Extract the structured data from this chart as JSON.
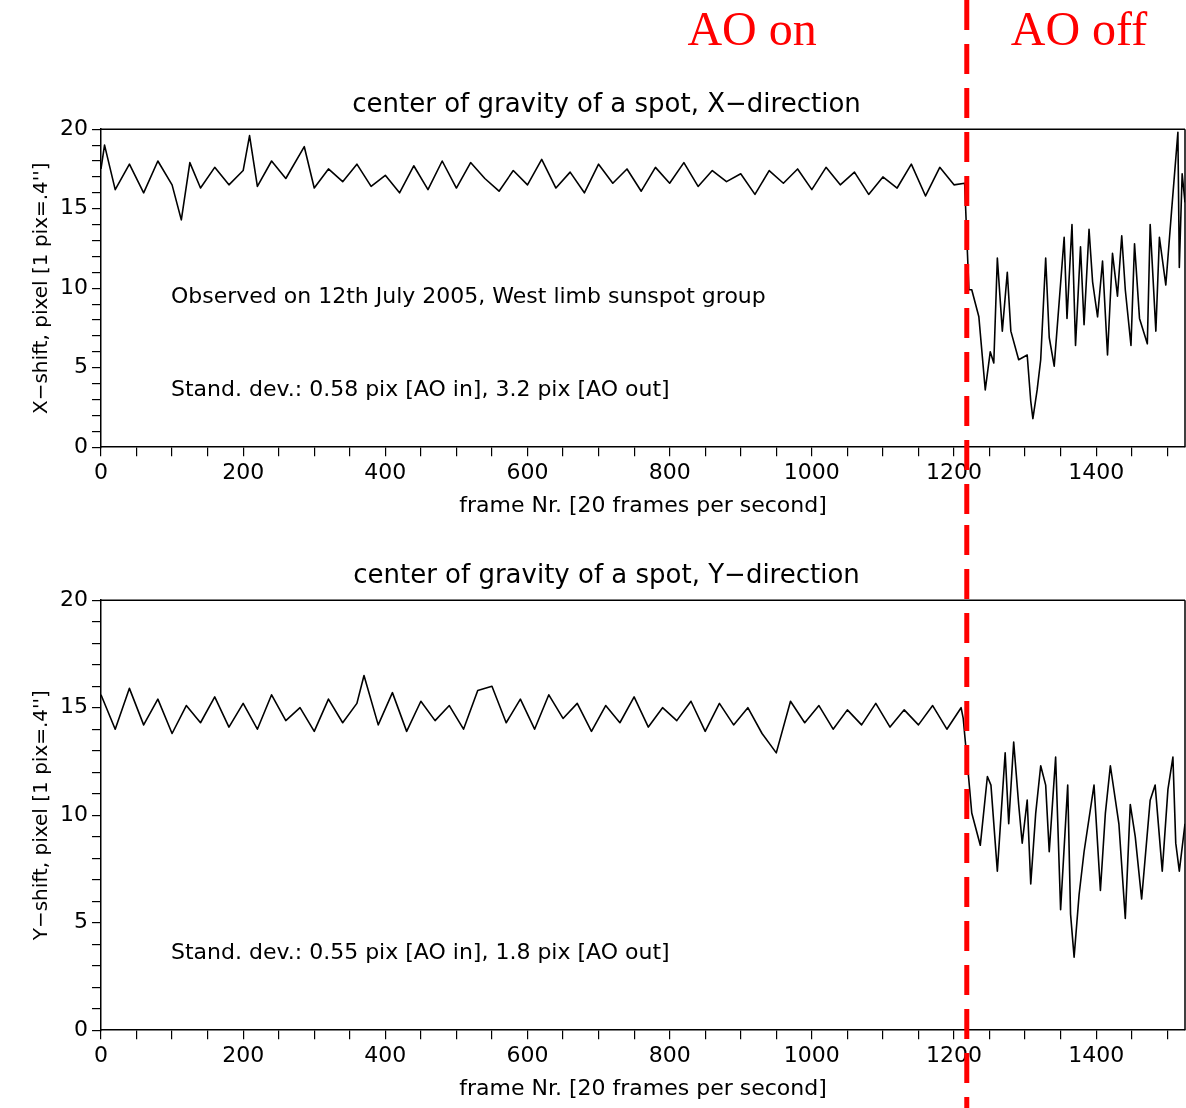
{
  "chart_data": [
    {
      "type": "line",
      "title": "center of gravity of a spot, X−direction",
      "xlabel": "frame Nr. [20 frames per second]",
      "ylabel": "X−shift, pixel [1 pix=.4'']",
      "color": "#000000",
      "x": [
        0,
        5,
        20,
        40,
        60,
        80,
        100,
        113,
        125,
        140,
        160,
        180,
        200,
        209,
        220,
        240,
        260,
        286,
        300,
        320,
        340,
        360,
        380,
        400,
        420,
        440,
        460,
        480,
        500,
        520,
        540,
        560,
        580,
        600,
        620,
        640,
        660,
        680,
        700,
        720,
        740,
        760,
        780,
        800,
        820,
        840,
        860,
        880,
        900,
        920,
        940,
        960,
        980,
        1000,
        1020,
        1040,
        1060,
        1080,
        1100,
        1120,
        1140,
        1160,
        1180,
        1200,
        1215,
        1221,
        1225,
        1235,
        1244,
        1251,
        1256,
        1261,
        1268,
        1275,
        1280,
        1291,
        1303,
        1308,
        1311,
        1317,
        1322,
        1329,
        1334,
        1341,
        1355,
        1359,
        1366,
        1371,
        1378,
        1383,
        1390,
        1395,
        1402,
        1409,
        1416,
        1423,
        1430,
        1436,
        1441,
        1449,
        1454,
        1461,
        1472,
        1476,
        1484,
        1489,
        1498,
        1506,
        1515,
        1517,
        1521,
        1525
      ],
      "values": [
        17.5,
        19.0,
        16.2,
        17.8,
        16.0,
        18.0,
        16.5,
        14.3,
        17.9,
        16.3,
        17.6,
        16.5,
        17.4,
        19.6,
        16.4,
        18.0,
        16.9,
        18.9,
        16.3,
        17.5,
        16.7,
        17.8,
        16.4,
        17.1,
        16.0,
        17.7,
        16.2,
        18.0,
        16.3,
        17.9,
        16.9,
        16.1,
        17.4,
        16.5,
        18.1,
        16.3,
        17.3,
        16.0,
        17.8,
        16.6,
        17.5,
        16.1,
        17.6,
        16.6,
        17.9,
        16.4,
        17.4,
        16.7,
        17.2,
        15.9,
        17.4,
        16.6,
        17.5,
        16.2,
        17.6,
        16.5,
        17.3,
        15.9,
        17.0,
        16.3,
        17.8,
        15.8,
        17.6,
        16.5,
        16.6,
        9.9,
        9.9,
        8.2,
        3.6,
        6.0,
        5.3,
        11.9,
        7.3,
        11.0,
        7.3,
        5.5,
        5.8,
        2.9,
        1.8,
        3.6,
        5.5,
        11.9,
        6.9,
        5.1,
        13.2,
        8.1,
        14.0,
        6.4,
        12.6,
        7.7,
        13.7,
        10.4,
        8.2,
        11.7,
        5.8,
        12.2,
        9.5,
        13.3,
        9.9,
        6.4,
        12.8,
        8.1,
        6.5,
        14.0,
        7.3,
        13.2,
        10.2,
        14.8,
        19.8,
        11.3,
        17.2,
        15.4
      ],
      "xlim": [
        0,
        1525
      ],
      "ylim": [
        0,
        20
      ],
      "xticks": [
        0,
        {
          "value": 50,
          "label": null
        },
        {
          "value": 100,
          "label": null
        },
        {
          "value": 150,
          "label": null
        },
        200,
        {
          "value": 250,
          "label": null
        },
        {
          "value": 300,
          "label": null
        },
        {
          "value": 350,
          "label": null
        },
        400,
        {
          "value": 450,
          "label": null
        },
        {
          "value": 500,
          "label": null
        },
        {
          "value": 550,
          "label": null
        },
        600,
        {
          "value": 650,
          "label": null
        },
        {
          "value": 700,
          "label": null
        },
        {
          "value": 750,
          "label": null
        },
        800,
        {
          "value": 850,
          "label": null
        },
        {
          "value": 900,
          "label": null
        },
        {
          "value": 950,
          "label": null
        },
        1000,
        {
          "value": 1050,
          "label": null
        },
        {
          "value": 1100,
          "label": null
        },
        {
          "value": 1150,
          "label": null
        },
        1200,
        {
          "value": 1250,
          "label": null
        },
        {
          "value": 1300,
          "label": null
        },
        {
          "value": 1350,
          "label": null
        },
        1400,
        {
          "value": 1450,
          "label": null
        },
        {
          "value": 1500,
          "label": null
        }
      ],
      "yticks": [
        0,
        {
          "value": 1,
          "label": null
        },
        {
          "value": 2,
          "label": null
        },
        {
          "value": 3,
          "label": null
        },
        {
          "value": 4,
          "label": null
        },
        5,
        {
          "value": 6,
          "label": null
        },
        {
          "value": 7,
          "label": null
        },
        {
          "value": 8,
          "label": null
        },
        {
          "value": 9,
          "label": null
        },
        10,
        {
          "value": 11,
          "label": null
        },
        {
          "value": 12,
          "label": null
        },
        {
          "value": 13,
          "label": null
        },
        {
          "value": 14,
          "label": null
        },
        15,
        {
          "value": 16,
          "label": null
        },
        {
          "value": 17,
          "label": null
        },
        {
          "value": 18,
          "label": null
        },
        {
          "value": 19,
          "label": null
        },
        20
      ],
      "ref_lines": [
        {
          "axis": "x",
          "value": 1218,
          "label": null,
          "color": "#ff0000",
          "line_style": "dashed"
        }
      ],
      "annotations": [
        "AO on",
        "AO off",
        "Observed on 12th July 2005, West limb sunspot group",
        "Stand. dev.: 0.58 pix [AO in], 3.2 pix [AO out]"
      ]
    },
    {
      "type": "line",
      "title": "center of gravity of a spot, Y−direction",
      "xlabel": "frame Nr. [20 frames per second]",
      "ylabel": "Y−shift, pixel [1 pix=.4'']",
      "color": "#000000",
      "x": [
        0,
        20,
        40,
        60,
        80,
        100,
        120,
        140,
        160,
        180,
        200,
        220,
        240,
        260,
        280,
        300,
        320,
        340,
        360,
        370,
        390,
        410,
        430,
        450,
        470,
        490,
        510,
        530,
        550,
        570,
        590,
        610,
        630,
        650,
        670,
        690,
        710,
        730,
        750,
        770,
        790,
        810,
        830,
        850,
        870,
        890,
        910,
        930,
        950,
        970,
        990,
        1010,
        1030,
        1050,
        1070,
        1090,
        1110,
        1130,
        1150,
        1170,
        1190,
        1210,
        1213,
        1221,
        1225,
        1237,
        1247,
        1252,
        1261,
        1272,
        1277,
        1284,
        1291,
        1296,
        1303,
        1308,
        1315,
        1322,
        1329,
        1334,
        1343,
        1350,
        1360,
        1364,
        1369,
        1376,
        1383,
        1397,
        1406,
        1413,
        1420,
        1432,
        1441,
        1448,
        1455,
        1464,
        1476,
        1483,
        1493,
        1501,
        1508,
        1512,
        1517,
        1525
      ],
      "values": [
        15.6,
        14.0,
        15.9,
        14.2,
        15.4,
        13.8,
        15.1,
        14.3,
        15.5,
        14.1,
        15.2,
        14.0,
        15.6,
        14.4,
        15.0,
        13.9,
        15.4,
        14.3,
        15.2,
        16.5,
        14.2,
        15.7,
        13.9,
        15.3,
        14.4,
        15.1,
        14.0,
        15.8,
        16.0,
        14.3,
        15.4,
        14.0,
        15.6,
        14.5,
        15.2,
        13.9,
        15.1,
        14.3,
        15.5,
        14.1,
        15.0,
        14.4,
        15.3,
        13.9,
        15.2,
        14.2,
        15.0,
        13.8,
        12.9,
        15.3,
        14.3,
        15.1,
        14.0,
        14.9,
        14.2,
        15.2,
        14.1,
        14.9,
        14.2,
        15.1,
        14.0,
        15.0,
        14.5,
        11.6,
        10.1,
        8.6,
        11.8,
        11.4,
        7.4,
        12.9,
        9.6,
        13.4,
        10.5,
        8.7,
        10.7,
        6.8,
        10.1,
        12.3,
        11.4,
        8.3,
        12.7,
        5.6,
        11.4,
        5.4,
        3.4,
        6.3,
        8.3,
        11.4,
        6.5,
        10.1,
        12.3,
        9.6,
        5.2,
        10.5,
        9.0,
        6.1,
        10.7,
        11.4,
        7.4,
        11.2,
        12.7,
        8.7,
        7.4,
        9.6
      ],
      "xlim": [
        0,
        1525
      ],
      "ylim": [
        0,
        20
      ],
      "xticks": [
        0,
        {
          "value": 50,
          "label": null
        },
        {
          "value": 100,
          "label": null
        },
        {
          "value": 150,
          "label": null
        },
        200,
        {
          "value": 250,
          "label": null
        },
        {
          "value": 300,
          "label": null
        },
        {
          "value": 350,
          "label": null
        },
        400,
        {
          "value": 450,
          "label": null
        },
        {
          "value": 500,
          "label": null
        },
        {
          "value": 550,
          "label": null
        },
        600,
        {
          "value": 650,
          "label": null
        },
        {
          "value": 700,
          "label": null
        },
        {
          "value": 750,
          "label": null
        },
        800,
        {
          "value": 850,
          "label": null
        },
        {
          "value": 900,
          "label": null
        },
        {
          "value": 950,
          "label": null
        },
        1000,
        {
          "value": 1050,
          "label": null
        },
        {
          "value": 1100,
          "label": null
        },
        {
          "value": 1150,
          "label": null
        },
        1200,
        {
          "value": 1250,
          "label": null
        },
        {
          "value": 1300,
          "label": null
        },
        {
          "value": 1350,
          "label": null
        },
        1400,
        {
          "value": 1450,
          "label": null
        },
        {
          "value": 1500,
          "label": null
        }
      ],
      "yticks": [
        0,
        {
          "value": 1,
          "label": null
        },
        {
          "value": 2,
          "label": null
        },
        {
          "value": 3,
          "label": null
        },
        {
          "value": 4,
          "label": null
        },
        5,
        {
          "value": 6,
          "label": null
        },
        {
          "value": 7,
          "label": null
        },
        {
          "value": 8,
          "label": null
        },
        {
          "value": 9,
          "label": null
        },
        10,
        {
          "value": 11,
          "label": null
        },
        {
          "value": 12,
          "label": null
        },
        {
          "value": 13,
          "label": null
        },
        {
          "value": 14,
          "label": null
        },
        15,
        {
          "value": 16,
          "label": null
        },
        {
          "value": 17,
          "label": null
        },
        {
          "value": 18,
          "label": null
        },
        {
          "value": 19,
          "label": null
        },
        20
      ],
      "ref_lines": [
        {
          "axis": "x",
          "value": 1218,
          "label": null,
          "color": "#ff0000",
          "line_style": "dashed"
        }
      ],
      "annotations": [
        "Stand. dev.: 0.55 pix [AO in], 1.8 pix [AO out]"
      ]
    }
  ]
}
